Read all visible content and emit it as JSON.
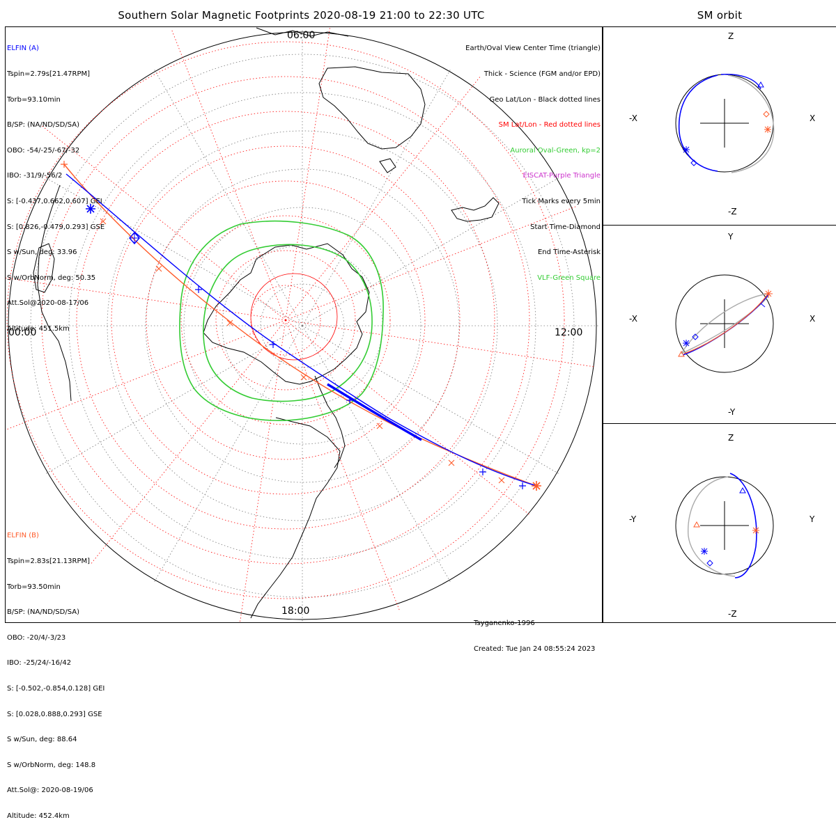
{
  "title": "Southern Solar Magnetic Footprints 2020-08-19 21:00 to 22:30 UTC",
  "orbit_title": "SM orbit",
  "colors": {
    "elfin_a": "#0000ff",
    "elfin_b": "#ff5a28",
    "sm_grid": "#ff0000",
    "auroral_oval": "#33cc33",
    "eiscat": "#cc33cc",
    "vlf": "#33cc33",
    "grid": "#777777",
    "orbit_gray": "#aaaaaa"
  },
  "elfin_a": {
    "name": "ELFIN (A)",
    "lines": [
      "Tspin=2.79s[21.47RPM]",
      "Torb=93.10min",
      "B/SP: (NA/ND/SD/SA)",
      "OBO: -54/-25/-67/-32",
      "IBO: -31/9/-56/2",
      "S: [-0.437,0.662,0.607] GEI",
      "S: [0.826,-0.479,0.293] GSE",
      "S w/Sun, deg: 33.96",
      "S w/OrbNorm, deg: 50.35",
      "Att.Sol@2020-08-17/06",
      "Altitude: 451.5km"
    ]
  },
  "elfin_b": {
    "name": "ELFIN (B)",
    "lines": [
      "Tspin=2.83s[21.13RPM]",
      "Torb=93.50min",
      "B/SP: (NA/ND/SD/SA)",
      "OBO: -20/4/-3/23",
      "IBO: -25/24/-16/42",
      "S: [-0.502,-0.854,0.128] GEI",
      "S: [0.028,0.888,0.293] GSE",
      "S w/Sun, deg: 88.64",
      "S w/OrbNorm, deg: 148.8",
      "Att.Sol@: 2020-08-19/06",
      "Altitude: 452.4km"
    ]
  },
  "legend": [
    {
      "text": "Earth/Oval View Center Time (triangle)",
      "color": "#000000"
    },
    {
      "text": "Thick - Science (FGM and/or EPD)",
      "color": "#000000"
    },
    {
      "text": "Geo Lat/Lon - Black dotted lines",
      "color": "#000000"
    },
    {
      "text": "SM Lat/Lon - Red dotted lines",
      "color": "#ff0000"
    },
    {
      "text": "Auroral Oval-Green, kp=2",
      "color": "#33cc33"
    },
    {
      "text": "EISCAT-Purple Triangle",
      "color": "#cc33cc"
    },
    {
      "text": "Tick Marks every 5min",
      "color": "#000000"
    },
    {
      "text": "Start Time-Diamond",
      "color": "#000000"
    },
    {
      "text": "End Time-Asterisk",
      "color": "#000000"
    },
    {
      "text": "VLF-Green Square",
      "color": "#33cc33"
    }
  ],
  "mlt_labels": {
    "left": "00:00",
    "right": "12:00",
    "top": "06:00",
    "bottom": "18:00"
  },
  "footer": {
    "model": "Tsyganenko-1996",
    "created": "Created: Tue Jan 24 08:55:24 2023"
  },
  "orbit_panels": [
    {
      "h_neg": "-X",
      "h_pos": "X",
      "v_pos": "Z",
      "v_neg": "-Z"
    },
    {
      "h_neg": "-X",
      "h_pos": "X",
      "v_pos": "Y",
      "v_neg": "-Y"
    },
    {
      "h_neg": "-Y",
      "h_pos": "Y",
      "v_pos": "Z",
      "v_neg": "-Z"
    }
  ]
}
